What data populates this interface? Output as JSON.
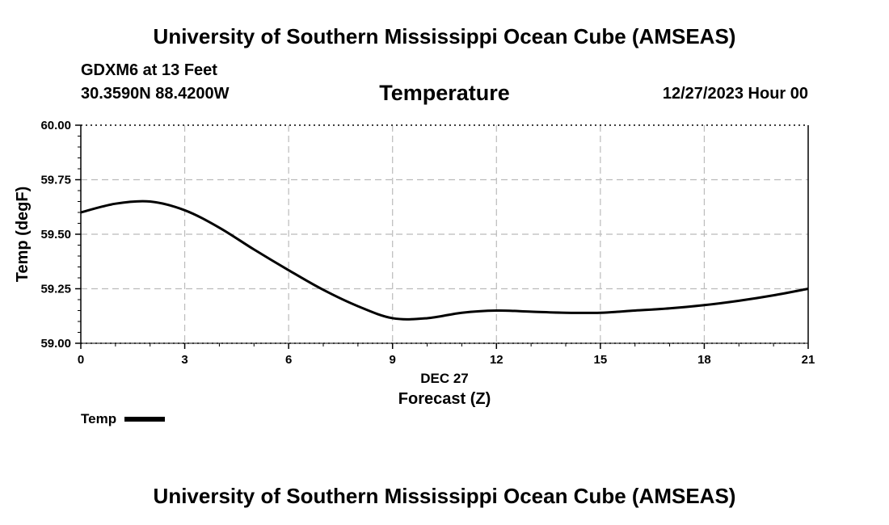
{
  "header": {
    "title": "University of Southern Mississippi Ocean Cube (AMSEAS)",
    "station": "GDXM6 at 13 Feet",
    "coords": "30.3590N  88.4200W",
    "run_time": "12/27/2023 Hour 00"
  },
  "footer": {
    "title": "University of Southern Mississippi Ocean Cube (AMSEAS)"
  },
  "chart_data": {
    "type": "line",
    "title": "Temperature",
    "xlabel": "Forecast (Z)",
    "xlabel_date": "DEC 27",
    "ylabel": "Temp (degF)",
    "xlim": [
      0,
      21
    ],
    "ylim": [
      59.0,
      60.0
    ],
    "x_ticks": [
      0,
      3,
      6,
      9,
      12,
      15,
      18,
      21
    ],
    "y_ticks": [
      "59.00",
      "59.25",
      "59.50",
      "59.75",
      "60.00"
    ],
    "grid": true,
    "legend": "bottom-left",
    "series": [
      {
        "name": "Temp",
        "color": "#000000",
        "x": [
          0,
          1,
          2,
          3,
          4,
          5,
          6,
          7,
          8,
          9,
          10,
          11,
          12,
          13,
          14,
          15,
          16,
          17,
          18,
          19,
          20,
          21
        ],
        "values": [
          59.6,
          59.64,
          59.65,
          59.61,
          59.53,
          59.43,
          59.335,
          59.245,
          59.17,
          59.115,
          59.115,
          59.14,
          59.15,
          59.145,
          59.14,
          59.14,
          59.15,
          59.16,
          59.175,
          59.195,
          59.22,
          59.25
        ]
      }
    ]
  }
}
